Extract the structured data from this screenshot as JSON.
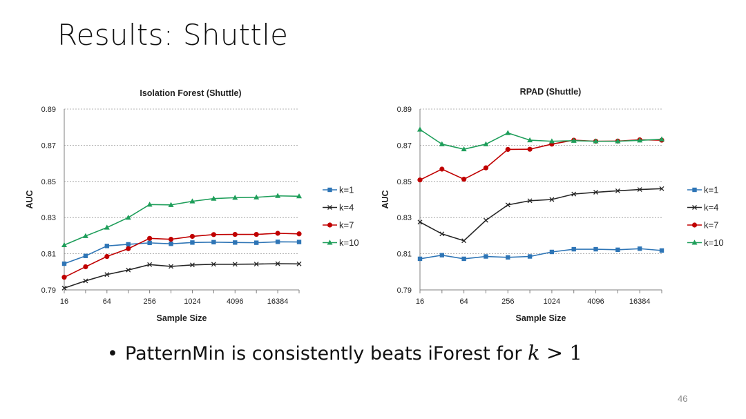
{
  "slide": {
    "title": "Results: Shuttle",
    "bullet": "PatternMin is consistently beats iForest for ",
    "math_var": "k",
    "math_rest": " > 1",
    "page_number": "46"
  },
  "chart_data": [
    {
      "type": "line",
      "title": "Isolation Forest (Shuttle)",
      "xlabel": "Sample Size",
      "ylabel": "AUC",
      "x_scale": "log2",
      "x": [
        16,
        32,
        64,
        128,
        256,
        512,
        1024,
        2048,
        4096,
        8192,
        16384,
        32768
      ],
      "x_tick_labels": [
        "16",
        "64",
        "256",
        "1024",
        "4096",
        "16384"
      ],
      "y_tick_labels": [
        "0.79",
        "0.81",
        "0.83",
        "0.85",
        "0.87",
        "0.89"
      ],
      "ylim": [
        0.79,
        0.89
      ],
      "grid": "horizontal dashed",
      "legend_position": "right",
      "series": [
        {
          "name": "k=1",
          "color": "#2e75b6",
          "marker": "square",
          "values": [
            0.8045,
            0.8088,
            0.8143,
            0.8152,
            0.816,
            0.8155,
            0.8162,
            0.8164,
            0.8162,
            0.8161,
            0.8166,
            0.8165
          ]
        },
        {
          "name": "k=4",
          "color": "#262626",
          "marker": "x",
          "values": [
            0.791,
            0.795,
            0.7985,
            0.801,
            0.804,
            0.803,
            0.8038,
            0.8042,
            0.8042,
            0.8043,
            0.8045,
            0.8044
          ]
        },
        {
          "name": "k=7",
          "color": "#c00000",
          "marker": "circle",
          "values": [
            0.797,
            0.8028,
            0.8085,
            0.8128,
            0.8185,
            0.818,
            0.8196,
            0.8206,
            0.8207,
            0.8207,
            0.8213,
            0.821
          ]
        },
        {
          "name": "k=10",
          "color": "#1e9e5a",
          "marker": "triangle",
          "values": [
            0.8148,
            0.8198,
            0.8245,
            0.83,
            0.8372,
            0.837,
            0.839,
            0.8405,
            0.841,
            0.8412,
            0.842,
            0.8418
          ]
        }
      ]
    },
    {
      "type": "line",
      "title": "RPAD (Shuttle)",
      "xlabel": "Sample Size",
      "ylabel": "AUC",
      "x_scale": "log2",
      "x": [
        16,
        32,
        64,
        128,
        256,
        512,
        1024,
        2048,
        4096,
        8192,
        16384,
        32768
      ],
      "x_tick_labels": [
        "16",
        "64",
        "256",
        "1024",
        "4096",
        "16384"
      ],
      "y_tick_labels": [
        "0.79",
        "0.81",
        "0.83",
        "0.85",
        "0.87",
        "0.89"
      ],
      "ylim": [
        0.79,
        0.89
      ],
      "grid": "horizontal dashed",
      "legend_position": "right",
      "series": [
        {
          "name": "k=1",
          "color": "#2e75b6",
          "marker": "square",
          "values": [
            0.8072,
            0.8092,
            0.8072,
            0.8085,
            0.808,
            0.8085,
            0.811,
            0.8125,
            0.8125,
            0.8122,
            0.8128,
            0.8118
          ]
        },
        {
          "name": "k=4",
          "color": "#262626",
          "marker": "x",
          "values": [
            0.8275,
            0.821,
            0.8172,
            0.8285,
            0.837,
            0.8393,
            0.84,
            0.843,
            0.844,
            0.8448,
            0.8455,
            0.846
          ]
        },
        {
          "name": "k=7",
          "color": "#c00000",
          "marker": "circle",
          "values": [
            0.8508,
            0.8568,
            0.8512,
            0.8575,
            0.8677,
            0.8678,
            0.8706,
            0.8728,
            0.8722,
            0.8723,
            0.873,
            0.8728
          ]
        },
        {
          "name": "k=10",
          "color": "#1e9e5a",
          "marker": "triangle",
          "values": [
            0.8787,
            0.8706,
            0.8678,
            0.8706,
            0.8768,
            0.8728,
            0.8722,
            0.8725,
            0.8722,
            0.8722,
            0.8727,
            0.8733
          ]
        }
      ]
    }
  ]
}
